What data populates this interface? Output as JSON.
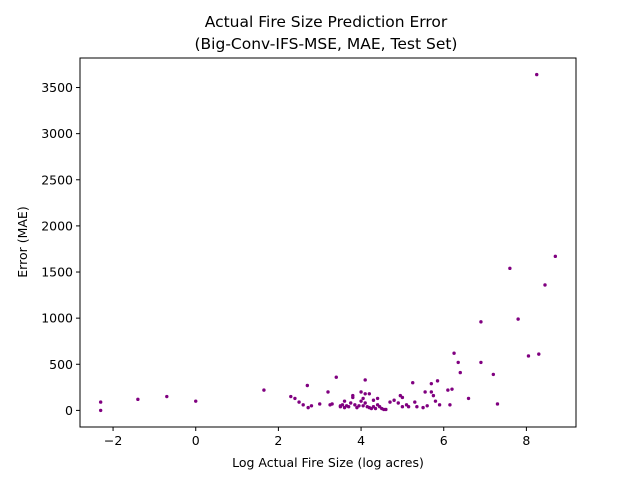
{
  "chart_data": {
    "type": "scatter",
    "title": "Actual Fire Size Prediction Error",
    "subtitle": "(Big-Conv-IFS-MSE, MAE, Test Set)",
    "xlabel": "Log Actual Fire Size (log acres)",
    "ylabel": "Error (MAE)",
    "xlim": [
      -2.8,
      9.2
    ],
    "ylim": [
      -180,
      3820
    ],
    "xticks": [
      -2,
      0,
      2,
      4,
      6,
      8
    ],
    "xtick_labels": [
      "−2",
      "0",
      "2",
      "4",
      "6",
      "8"
    ],
    "yticks": [
      0,
      500,
      1000,
      1500,
      2000,
      2500,
      3000,
      3500
    ],
    "ytick_labels": [
      "0",
      "500",
      "1000",
      "1500",
      "2000",
      "2500",
      "3000",
      "3500"
    ],
    "grid": false,
    "marker_color": "#800080",
    "x": [
      -2.3,
      -2.3,
      -1.4,
      -0.7,
      0.0,
      1.65,
      2.3,
      2.4,
      2.5,
      2.6,
      2.7,
      2.72,
      2.8,
      3.0,
      3.2,
      3.25,
      3.3,
      3.4,
      3.5,
      3.5,
      3.55,
      3.6,
      3.6,
      3.65,
      3.7,
      3.75,
      3.8,
      3.8,
      3.85,
      3.9,
      3.95,
      4.0,
      4.0,
      4.05,
      4.05,
      4.1,
      4.1,
      4.1,
      4.15,
      4.2,
      4.2,
      4.25,
      4.3,
      4.3,
      4.35,
      4.4,
      4.4,
      4.45,
      4.5,
      4.55,
      4.6,
      4.7,
      4.8,
      4.9,
      4.95,
      5.0,
      5.0,
      5.1,
      5.15,
      5.25,
      5.3,
      5.35,
      5.5,
      5.55,
      5.6,
      5.7,
      5.7,
      5.75,
      5.8,
      5.85,
      5.9,
      6.1,
      6.15,
      6.2,
      6.25,
      6.35,
      6.4,
      6.6,
      6.9,
      6.9,
      7.2,
      7.3,
      7.6,
      7.8,
      8.05,
      8.25,
      8.3,
      8.45,
      8.7
    ],
    "y": [
      90,
      0,
      120,
      150,
      100,
      220,
      150,
      130,
      90,
      60,
      270,
      30,
      50,
      70,
      200,
      60,
      70,
      360,
      50,
      40,
      60,
      100,
      30,
      50,
      40,
      80,
      160,
      140,
      60,
      30,
      50,
      100,
      200,
      50,
      130,
      180,
      330,
      80,
      40,
      30,
      180,
      20,
      110,
      40,
      20,
      60,
      130,
      40,
      20,
      10,
      10,
      90,
      110,
      80,
      160,
      140,
      40,
      60,
      40,
      300,
      90,
      40,
      30,
      200,
      50,
      290,
      200,
      160,
      100,
      320,
      60,
      220,
      60,
      230,
      620,
      520,
      410,
      130,
      960,
      520,
      390,
      70,
      1540,
      990,
      590,
      3640,
      610,
      1360,
      1670
    ]
  }
}
